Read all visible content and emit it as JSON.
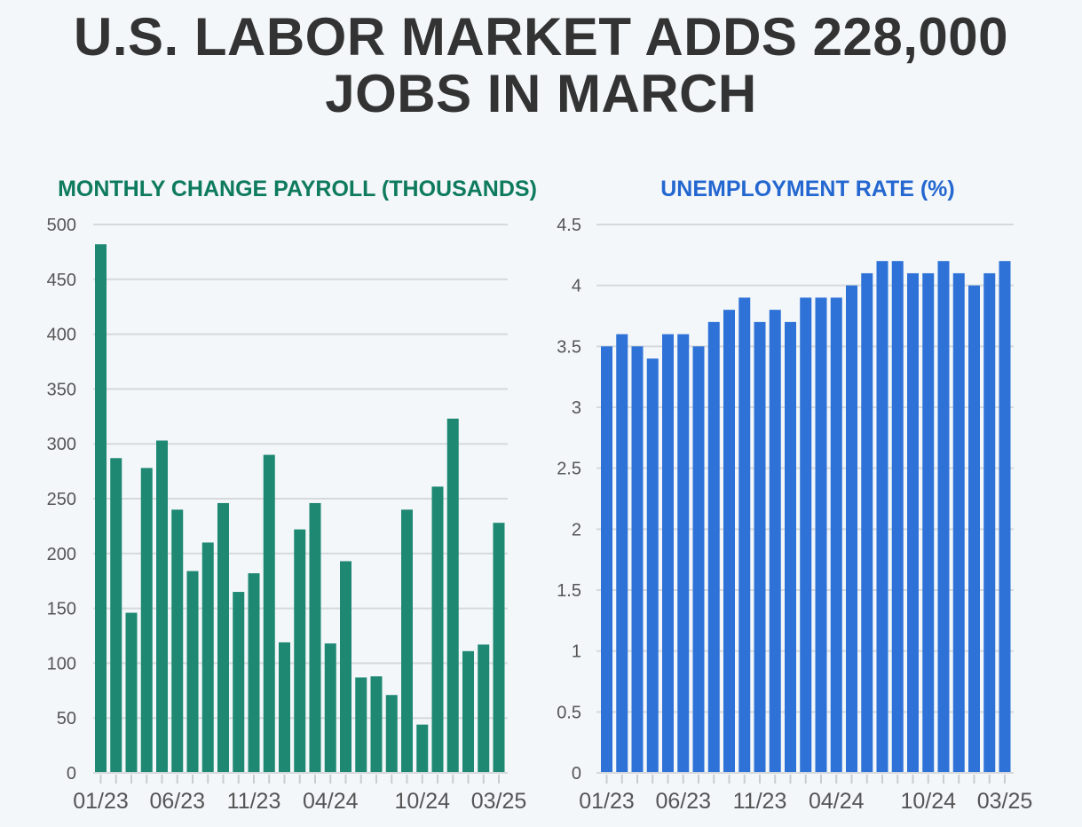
{
  "headline": {
    "line1": "U.S. LABOR MARKET ADDS 228,000",
    "line2": "JOBS IN MARCH"
  },
  "colors": {
    "background": "#f3f7fa",
    "headline": "#333333",
    "payroll": "#1e8873",
    "payroll_title": "#0e7a5e",
    "unemployment": "#2e72d8",
    "unemployment_title": "#2467d0",
    "grid": "#d6d9dc",
    "tick_text": "#555555"
  },
  "chart_data": [
    {
      "id": "payroll",
      "type": "bar",
      "title": "MONTHLY CHANGE PAYROLL (THOUSANDS)",
      "xlabel": "",
      "ylabel": "",
      "ylim": [
        0,
        500
      ],
      "yticks": [
        0,
        50,
        100,
        150,
        200,
        250,
        300,
        350,
        400,
        450,
        500
      ],
      "ytick_labels": [
        "0",
        "50",
        "100",
        "150",
        "200",
        "250",
        "300",
        "350",
        "400",
        "450",
        "500"
      ],
      "grid": true,
      "categories": [
        "01/23",
        "02/23",
        "03/23",
        "04/23",
        "05/23",
        "06/23",
        "07/23",
        "08/23",
        "09/23",
        "10/23",
        "11/23",
        "12/23",
        "01/24",
        "02/24",
        "03/24",
        "04/24",
        "05/24",
        "06/24",
        "07/24",
        "08/24",
        "09/24",
        "10/24",
        "11/24",
        "12/24",
        "01/25",
        "02/25",
        "03/25"
      ],
      "x_tick_labels": [
        "01/23",
        "06/23",
        "11/23",
        "04/24",
        "10/24",
        "03/25"
      ],
      "values": [
        482,
        287,
        146,
        278,
        303,
        240,
        184,
        210,
        246,
        165,
        182,
        290,
        119,
        222,
        246,
        118,
        193,
        87,
        88,
        71,
        240,
        44,
        261,
        323,
        111,
        117,
        228
      ]
    },
    {
      "id": "unemployment",
      "type": "bar",
      "title": "UNEMPLOYMENT RATE (%)",
      "xlabel": "",
      "ylabel": "",
      "ylim": [
        0,
        4.5
      ],
      "yticks": [
        0,
        0.5,
        1,
        1.5,
        2,
        2.5,
        3,
        3.5,
        4,
        4.5
      ],
      "ytick_labels": [
        "0",
        "0.5",
        "1",
        "1.5",
        "2",
        "2.5",
        "3",
        "3.5",
        "4",
        "4.5"
      ],
      "grid": true,
      "categories": [
        "01/23",
        "02/23",
        "03/23",
        "04/23",
        "05/23",
        "06/23",
        "07/23",
        "08/23",
        "09/23",
        "10/23",
        "11/23",
        "12/23",
        "01/24",
        "02/24",
        "03/24",
        "04/24",
        "05/24",
        "06/24",
        "07/24",
        "08/24",
        "09/24",
        "10/24",
        "11/24",
        "12/24",
        "01/25",
        "02/25",
        "03/25"
      ],
      "x_tick_labels": [
        "01/23",
        "06/23",
        "11/23",
        "04/24",
        "10/24",
        "03/25"
      ],
      "values": [
        3.5,
        3.6,
        3.5,
        3.4,
        3.6,
        3.6,
        3.5,
        3.7,
        3.8,
        3.9,
        3.7,
        3.8,
        3.7,
        3.9,
        3.9,
        3.9,
        4.0,
        4.1,
        4.2,
        4.2,
        4.1,
        4.1,
        4.2,
        4.1,
        4.0,
        4.1,
        4.2
      ]
    }
  ]
}
